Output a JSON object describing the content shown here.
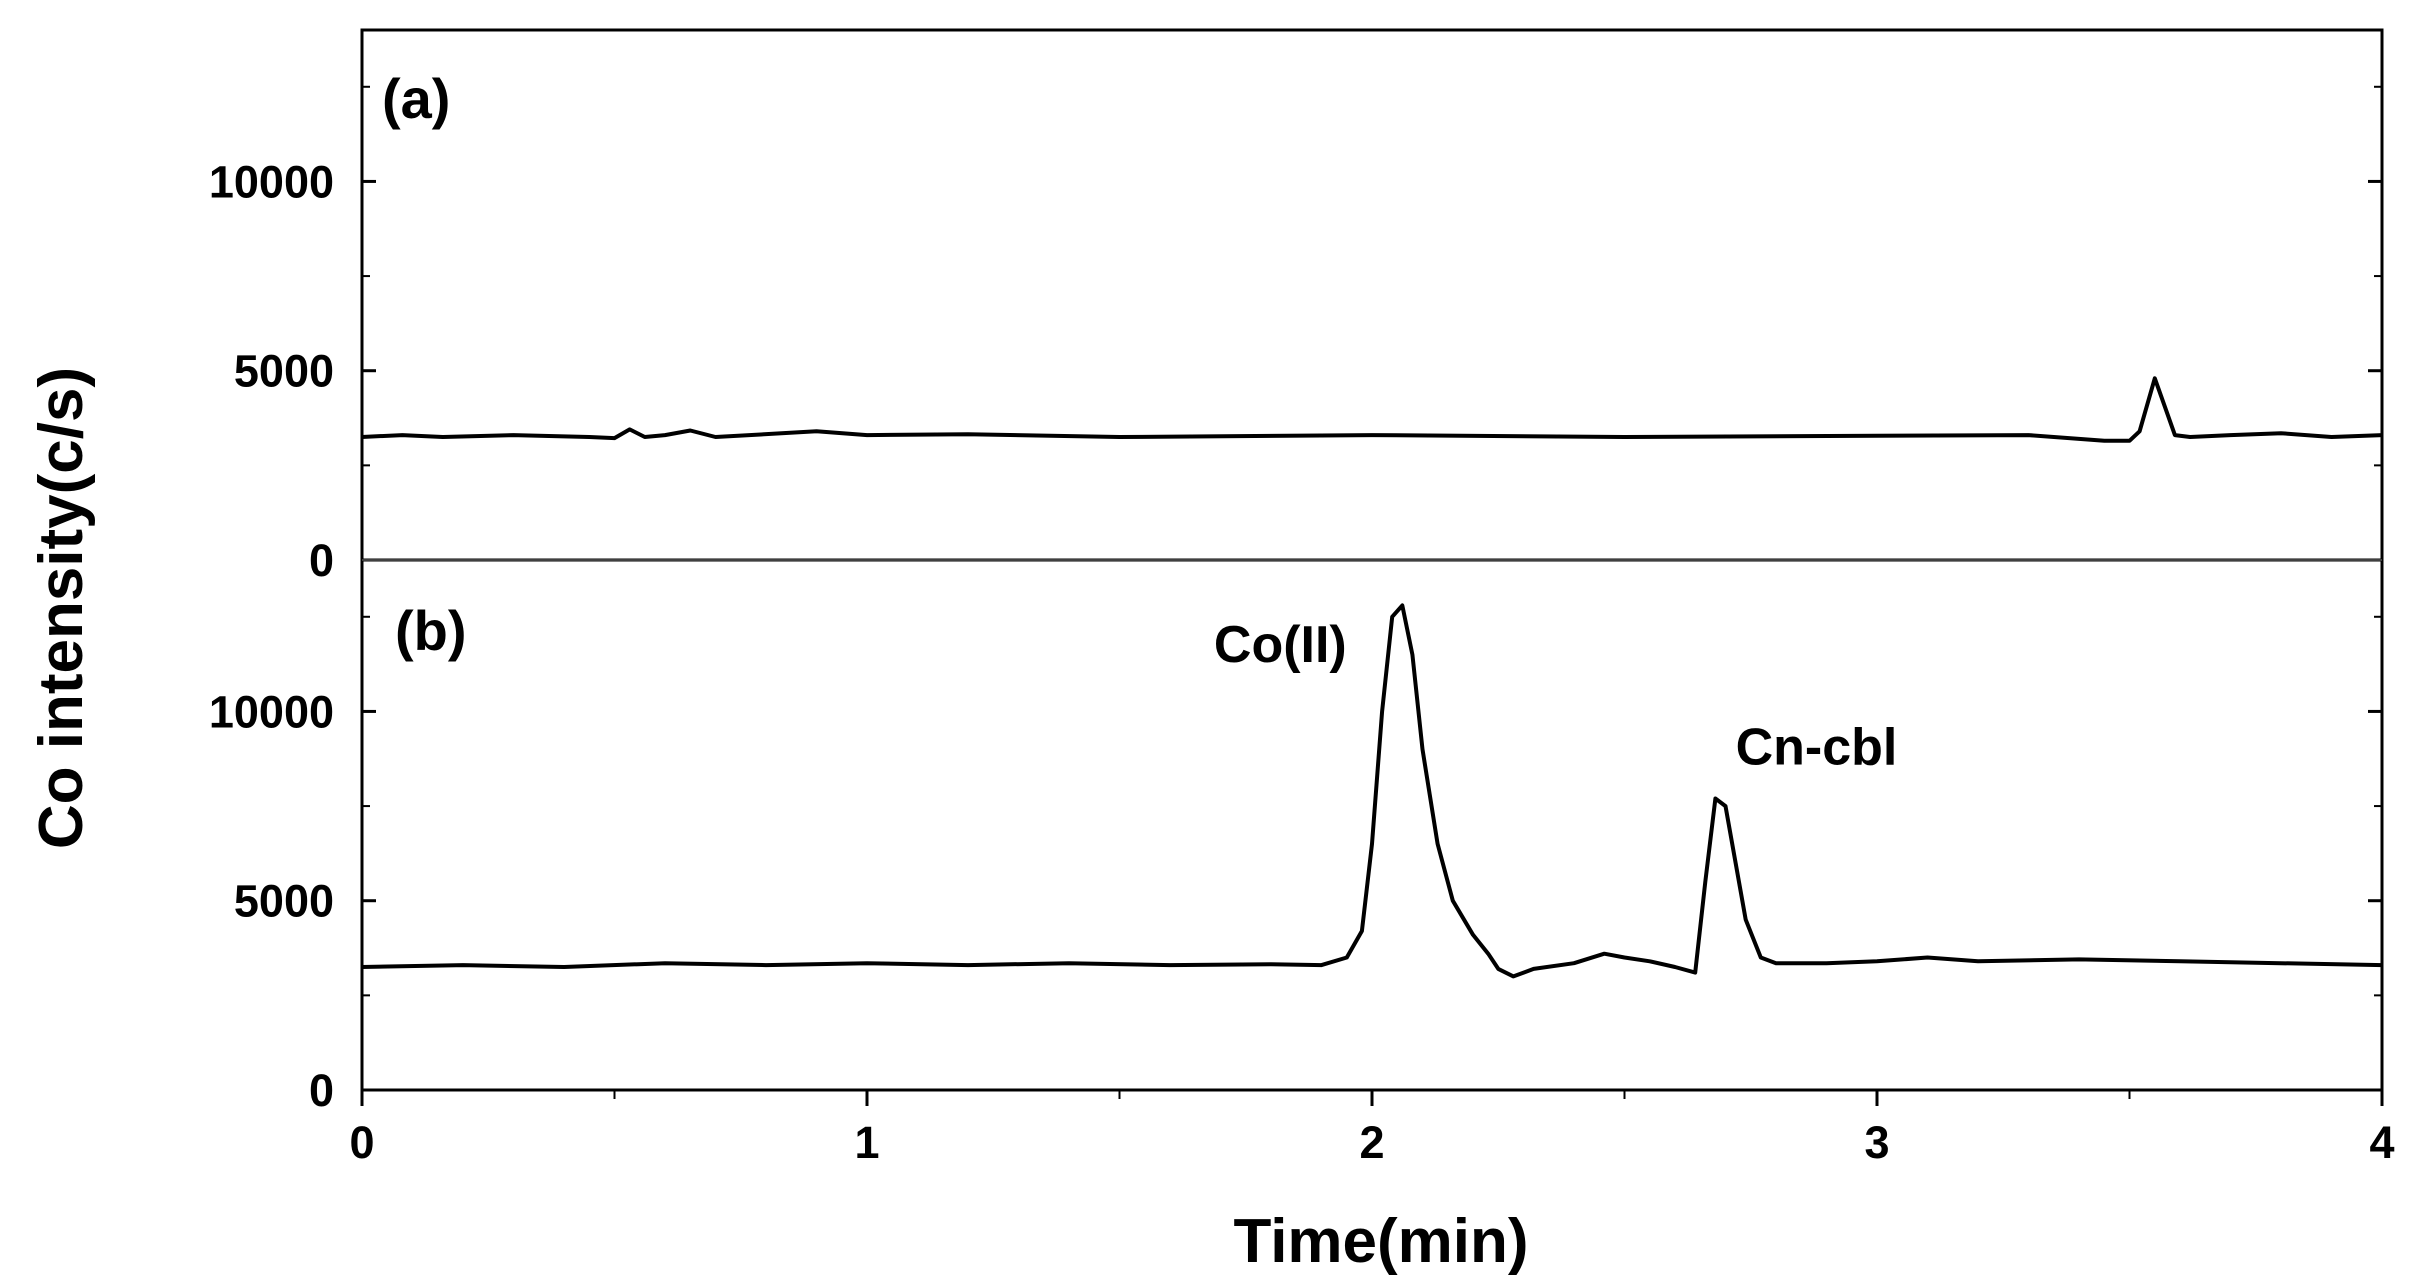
{
  "chart_data": {
    "type": "line",
    "xlabel": "Time(min)",
    "ylabel": "Co intensity(c/s)",
    "xlim": [
      0,
      4
    ],
    "x_ticks": [
      "0",
      "1",
      "2",
      "3",
      "4"
    ],
    "grid": false,
    "legend": "none",
    "line_color": "#000000",
    "panels": [
      {
        "label": "(a)",
        "ylim": [
          0,
          14000
        ],
        "y_ticks": [
          "0",
          "5000",
          "10000"
        ],
        "y_tick_values": [
          0,
          5000,
          10000
        ],
        "series": [
          {
            "x": [
              0.0,
              0.08,
              0.16,
              0.3,
              0.45,
              0.5,
              0.53,
              0.56,
              0.6,
              0.65,
              0.7,
              0.9,
              1.0,
              1.2,
              1.5,
              2.0,
              2.5,
              3.0,
              3.3,
              3.45,
              3.5,
              3.52,
              3.55,
              3.59,
              3.62,
              3.7,
              3.8,
              3.9,
              4.0
            ],
            "y": [
              3250,
              3300,
              3250,
              3300,
              3250,
              3220,
              3450,
              3250,
              3300,
              3420,
              3250,
              3400,
              3300,
              3320,
              3250,
              3300,
              3250,
              3280,
              3300,
              3150,
              3150,
              3400,
              4800,
              3300,
              3250,
              3300,
              3350,
              3250,
              3300
            ]
          }
        ],
        "annotations": []
      },
      {
        "label": "(b)",
        "ylim": [
          0,
          14000
        ],
        "y_ticks": [
          "0",
          "5000",
          "10000"
        ],
        "y_tick_values": [
          0,
          5000,
          10000
        ],
        "series": [
          {
            "x": [
              0.0,
              0.2,
              0.4,
              0.6,
              0.8,
              1.0,
              1.2,
              1.4,
              1.6,
              1.8,
              1.9,
              1.95,
              1.98,
              2.0,
              2.02,
              2.04,
              2.06,
              2.08,
              2.1,
              2.13,
              2.16,
              2.2,
              2.23,
              2.25,
              2.28,
              2.32,
              2.4,
              2.46,
              2.5,
              2.55,
              2.6,
              2.64,
              2.66,
              2.68,
              2.7,
              2.72,
              2.74,
              2.77,
              2.8,
              2.9,
              3.0,
              3.1,
              3.2,
              3.4,
              3.6,
              3.8,
              4.0
            ],
            "y": [
              3250,
              3300,
              3250,
              3350,
              3300,
              3350,
              3300,
              3350,
              3300,
              3320,
              3300,
              3500,
              4200,
              6500,
              10000,
              12500,
              12800,
              11500,
              9000,
              6500,
              5000,
              4100,
              3600,
              3200,
              3000,
              3200,
              3350,
              3600,
              3500,
              3400,
              3250,
              3100,
              5500,
              7700,
              7500,
              6000,
              4500,
              3500,
              3350,
              3350,
              3400,
              3500,
              3400,
              3450,
              3400,
              3350,
              3300
            ]
          }
        ],
        "annotations": [
          {
            "text": "Co(II)",
            "x": 1.95,
            "y": 11300
          },
          {
            "text": "Cn-cbl",
            "x": 2.72,
            "y": 8600
          }
        ]
      }
    ]
  }
}
